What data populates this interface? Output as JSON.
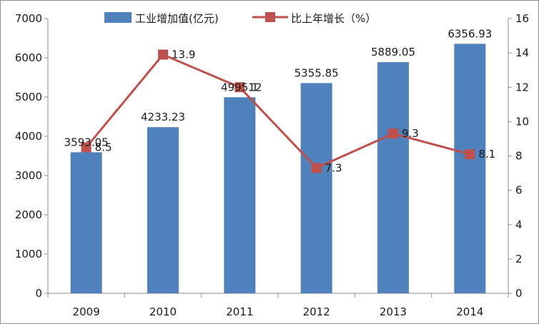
{
  "chart_data": {
    "type": "bar",
    "categories": [
      "2009",
      "2010",
      "2011",
      "2012",
      "2013",
      "2014"
    ],
    "series": [
      {
        "name": "工业增加值(亿元)",
        "type": "bar",
        "axis": "left",
        "values": [
          3593.05,
          4233.23,
          4995.1,
          5355.85,
          5889.05,
          6356.93
        ],
        "labels": [
          "3593.05",
          "4233.23",
          "4995.1",
          "5355.85",
          "5889.05",
          "6356.93"
        ],
        "color": "#4f81bd"
      },
      {
        "name": "比上年增长（%）",
        "type": "line",
        "axis": "right",
        "values": [
          8.5,
          13.9,
          12,
          7.3,
          9.3,
          8.1
        ],
        "labels": [
          "8.5",
          "13.9",
          "12",
          "7.3",
          "9.3",
          "8.1"
        ],
        "color": "#c0504d"
      }
    ],
    "title": "",
    "xlabel": "",
    "ylabel": "",
    "y_left": {
      "lim": [
        0,
        7000
      ],
      "ticks": [
        "0",
        "1000",
        "2000",
        "3000",
        "4000",
        "5000",
        "6000",
        "7000"
      ]
    },
    "y_right": {
      "lim": [
        0,
        16
      ],
      "ticks": [
        "0",
        "2",
        "4",
        "6",
        "8",
        "10",
        "12",
        "14",
        "16"
      ]
    },
    "grid": false,
    "legend": "top"
  }
}
